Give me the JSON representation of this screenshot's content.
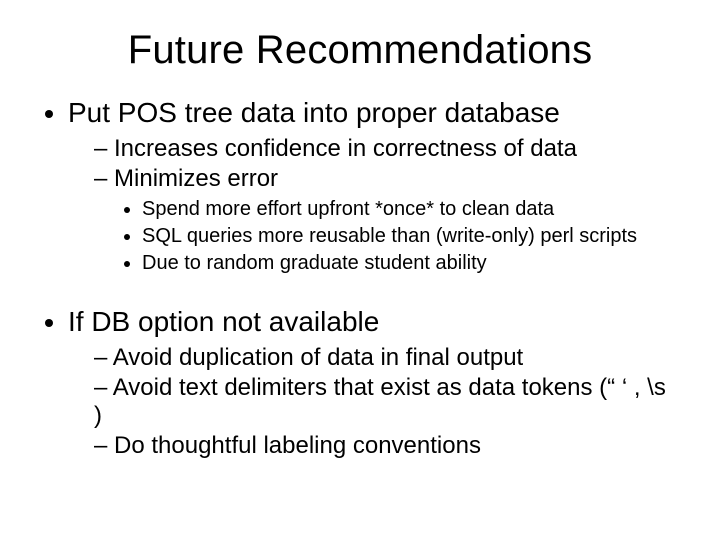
{
  "title": "Future Recommendations",
  "bullets": [
    {
      "text": "Put POS tree data into proper database",
      "children": [
        {
          "text": "Increases confidence in correctness of data"
        },
        {
          "text": "Minimizes error",
          "children": [
            {
              "text": "Spend more effort upfront *once* to clean data"
            },
            {
              "text": "SQL queries more reusable than (write-only) perl scripts"
            },
            {
              "text": "Due to random graduate student ability"
            }
          ]
        }
      ]
    },
    {
      "text": "If DB option not available",
      "children": [
        {
          "text": "Avoid duplication of data in final output"
        },
        {
          "text": "Avoid text delimiters that exist as data tokens (“ ‘ , \\s )"
        },
        {
          "text": "Do thoughtful labeling conventions"
        }
      ]
    }
  ],
  "colors": {
    "background": "#ffffff",
    "text": "#000000"
  },
  "fonts": {
    "family": "Arial",
    "title_size_pt": 40,
    "level1_size_pt": 28,
    "level2_size_pt": 24,
    "level3_size_pt": 20
  }
}
